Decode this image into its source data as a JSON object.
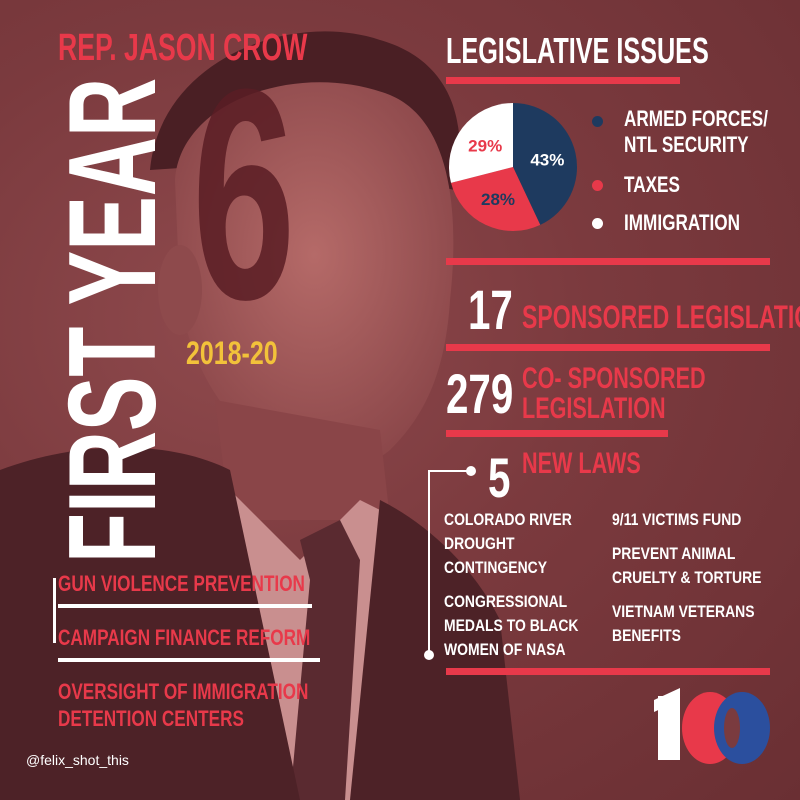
{
  "header": {
    "name": "REP. JASON CROW",
    "first_year": "FIRST YEAR",
    "district": "6",
    "years": "2018-20"
  },
  "issues_section": {
    "title": "LEGISLATIVE ISSUES",
    "legend": [
      {
        "label_line1": "ARMED FORCES/",
        "label_line2": "NTL SECURITY",
        "color": "#1e3a5f"
      },
      {
        "label_line1": "TAXES",
        "label_line2": "",
        "color": "#e8394a"
      },
      {
        "label_line1": "IMMIGRATION",
        "label_line2": "",
        "color": "#ffffff"
      }
    ]
  },
  "chart_data": {
    "type": "pie",
    "categories": [
      "ARMED FORCES/NTL SECURITY",
      "TAXES",
      "IMMIGRATION"
    ],
    "values": [
      43,
      28,
      29
    ],
    "labels": [
      "43%",
      "28%",
      "29%"
    ],
    "colors": [
      "#1e3a5f",
      "#e8394a",
      "#ffffff"
    ]
  },
  "stats": {
    "sponsored_count": "17",
    "sponsored_label": "SPONSORED LEGISLATION",
    "cosponsored_count": "279",
    "cosponsored_label_line1": "CO- SPONSORED",
    "cosponsored_label_line2": "LEGISLATION",
    "laws_count": "5",
    "laws_label": "NEW LAWS"
  },
  "laws": {
    "left": [
      [
        "COLORADO RIVER",
        "DROUGHT",
        "CONTINGENCY"
      ],
      [
        "CONGRESSIONAL",
        "MEDALS TO BLACK",
        "WOMEN OF NASA"
      ]
    ],
    "right": [
      [
        "9/11 VICTIMS FUND"
      ],
      [
        "PREVENT ANIMAL",
        "CRUELTY & TORTURE"
      ],
      [
        "VIETNAM VETERANS",
        "BENEFITS"
      ]
    ]
  },
  "priorities": [
    {
      "line1": "GUN VIOLENCE PREVENTION",
      "line2": ""
    },
    {
      "line1": "CAMPAIGN FINANCE REFORM",
      "line2": ""
    },
    {
      "line1": "OVERSIGHT OF IMMIGRATION",
      "line2": "DETENTION CENTERS"
    }
  ],
  "credit": "@felix_shot_this",
  "logo": "10"
}
